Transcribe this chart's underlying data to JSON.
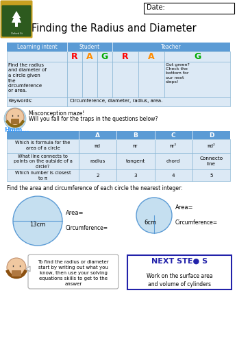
{
  "title": "Finding the Radius and Diameter",
  "date_label": "Date:",
  "bg_color": "#ffffff",
  "header_blue": "#5b9bd5",
  "light_blue": "#cce0f0",
  "lighter_blue": "#dce9f5",
  "misconception_text1": "Misconception maze!",
  "misconception_text2": "Will you fall for the traps in the questions below?",
  "table2_rows": [
    [
      "Which is formula for the\narea of a circle",
      "πd",
      "πr",
      "πr²",
      "πd²"
    ],
    [
      "What line connects to\npoints on the outside of a\ncircle?",
      "radius",
      "tangent",
      "chord",
      "Connecto\nline"
    ],
    [
      "Which number is closest\nto π",
      "2",
      "3",
      "4",
      "5"
    ]
  ],
  "find_text": "Find the area and circumference of each circle the nearest integer:",
  "circle1_label": "13cm",
  "circle2_label": "6cm",
  "area_label": "Area=",
  "circ_label": "Circumference=",
  "tip_text": "To find the radius or diameter\nstart by writing out what you\nknow, then use your solving\nequations skills to get to the\nanswer",
  "next_steps_text": "Work on the surface area\nand volume of cylinders",
  "circle_fill": "#c5dff0",
  "circle_edge": "#5b9bd5",
  "hillcrest_green": "#2d5a1e",
  "hillcrest_gold": "#c8a020",
  "hillcrest_dark_green": "#1a3a10",
  "r_color": "#ff0000",
  "a_color": "#ff8c00",
  "g_color": "#00aa00",
  "next_steps_blue": "#2222aa",
  "learning_intent_text": "Find the radius\nand diameter of\na circle given\nthe\ncircumference\nor area.",
  "got_green_text": "Got green?\nCheck the\nbottom for\nour next\nsteps!",
  "keywords_text": "Circumference, diameter, radius, area."
}
